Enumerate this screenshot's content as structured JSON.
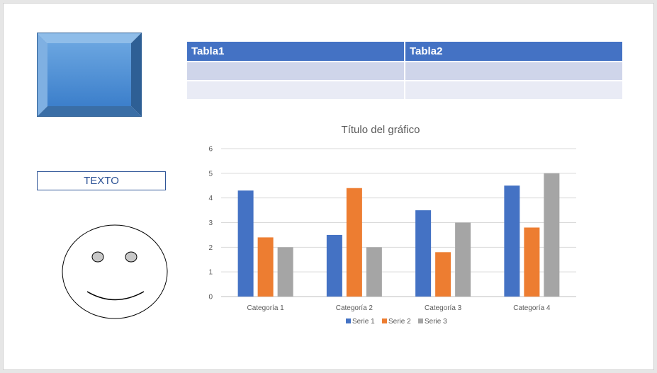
{
  "table": {
    "headers": [
      "Tabla1",
      "Tabla2"
    ],
    "rows": [
      [
        "",
        ""
      ],
      [
        "",
        ""
      ]
    ]
  },
  "textbox": {
    "label": "TEXTO"
  },
  "colors": {
    "series_1": "#4472c4",
    "series_2": "#ed7d31",
    "series_3": "#a5a5a5",
    "table_header": "#4472c4",
    "textbox_border": "#2f5597"
  },
  "chart_data": {
    "type": "bar",
    "title": "Título del gráfico",
    "categories": [
      "Categoría 1",
      "Categoría 2",
      "Categoría 3",
      "Categoría 4"
    ],
    "series": [
      {
        "name": "Serie 1",
        "values": [
          4.3,
          2.5,
          3.5,
          4.5
        ]
      },
      {
        "name": "Serie 2",
        "values": [
          2.4,
          4.4,
          1.8,
          2.8
        ]
      },
      {
        "name": "Serie 3",
        "values": [
          2,
          2,
          3,
          5
        ]
      }
    ],
    "ylim": [
      0,
      6
    ],
    "yticks": [
      "0",
      "1",
      "2",
      "3",
      "4",
      "5",
      "6"
    ],
    "grid": true,
    "legend": "bottom"
  }
}
